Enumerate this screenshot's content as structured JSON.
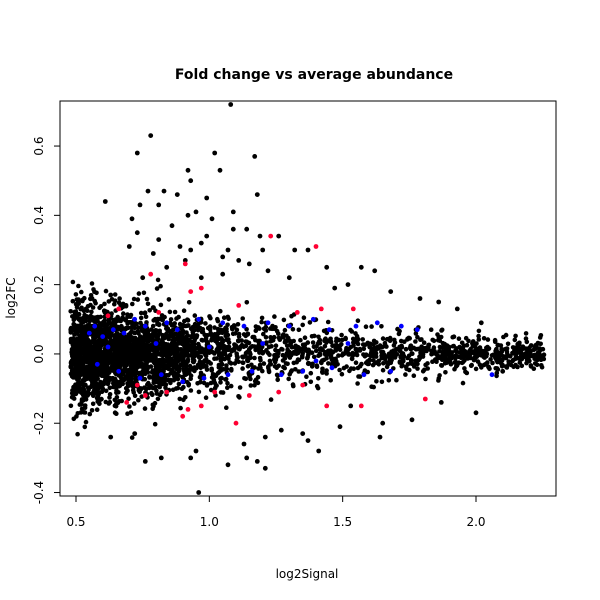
{
  "chart_data": {
    "type": "scatter",
    "title": "Fold change vs average abundance",
    "xlabel": "log2Signal",
    "ylabel": "log2FC",
    "xlim": [
      0.44,
      2.3
    ],
    "ylim": [
      -0.41,
      0.73
    ],
    "xticks": [
      0.5,
      1.0,
      1.5,
      2.0
    ],
    "xtick_labels": [
      "0.5",
      "1.0",
      "1.5",
      "2.0"
    ],
    "yticks": [
      -0.4,
      -0.2,
      0.0,
      0.2,
      0.4,
      0.6
    ],
    "ytick_labels": [
      "-0.4",
      "-0.2",
      "0.0",
      "0.2",
      "0.4",
      "0.6"
    ],
    "grid": false,
    "legend": "none",
    "colors": {
      "all": "#000000",
      "blue_highlight": "#0000ff",
      "red_highlight": "#ff0033"
    },
    "series": [
      {
        "color": "#000000",
        "points": [
          [
            1.08,
            0.72
          ],
          [
            0.78,
            0.63
          ],
          [
            0.73,
            0.58
          ],
          [
            1.02,
            0.58
          ],
          [
            1.17,
            0.57
          ],
          [
            0.92,
            0.53
          ],
          [
            1.04,
            0.53
          ],
          [
            0.93,
            0.5
          ],
          [
            0.83,
            0.47
          ],
          [
            0.77,
            0.47
          ],
          [
            1.18,
            0.46
          ],
          [
            0.99,
            0.45
          ],
          [
            0.88,
            0.46
          ],
          [
            0.61,
            0.44
          ],
          [
            0.81,
            0.43
          ],
          [
            0.95,
            0.41
          ],
          [
            1.09,
            0.41
          ],
          [
            0.71,
            0.39
          ],
          [
            1.01,
            0.39
          ],
          [
            0.86,
            0.37
          ],
          [
            1.14,
            0.36
          ],
          [
            0.73,
            0.35
          ],
          [
            1.26,
            0.34
          ],
          [
            1.19,
            0.34
          ],
          [
            0.81,
            0.33
          ],
          [
            1.32,
            0.3
          ],
          [
            0.93,
            0.3
          ],
          [
            1.37,
            0.3
          ],
          [
            0.7,
            0.31
          ],
          [
            1.05,
            0.28
          ],
          [
            0.91,
            0.27
          ],
          [
            1.15,
            0.26
          ],
          [
            1.44,
            0.25
          ],
          [
            1.57,
            0.25
          ],
          [
            0.84,
            0.25
          ],
          [
            1.05,
            0.23
          ],
          [
            1.22,
            0.24
          ],
          [
            0.97,
            0.22
          ],
          [
            1.3,
            0.22
          ],
          [
            1.62,
            0.24
          ],
          [
            0.75,
            0.22
          ],
          [
            1.47,
            0.19
          ],
          [
            1.68,
            0.18
          ],
          [
            1.52,
            0.2
          ],
          [
            1.79,
            0.16
          ],
          [
            1.86,
            0.15
          ],
          [
            0.56,
            0.16
          ],
          [
            0.63,
            0.17
          ],
          [
            1.93,
            0.13
          ],
          [
            2.02,
            0.09
          ],
          [
            1.27,
            -0.22
          ],
          [
            1.21,
            -0.24
          ],
          [
            1.35,
            -0.23
          ],
          [
            0.72,
            -0.23
          ],
          [
            0.63,
            -0.24
          ],
          [
            0.95,
            -0.28
          ],
          [
            0.93,
            -0.3
          ],
          [
            0.82,
            -0.3
          ],
          [
            0.76,
            -0.31
          ],
          [
            1.14,
            -0.3
          ],
          [
            1.18,
            -0.31
          ],
          [
            1.07,
            -0.32
          ],
          [
            1.21,
            -0.33
          ],
          [
            0.96,
            -0.4
          ],
          [
            1.37,
            -0.25
          ],
          [
            1.41,
            -0.28
          ],
          [
            1.64,
            -0.24
          ],
          [
            1.65,
            -0.2
          ],
          [
            1.76,
            -0.19
          ],
          [
            2.0,
            -0.17
          ],
          [
            1.87,
            -0.14
          ],
          [
            0.52,
            -0.1
          ],
          [
            0.58,
            -0.09
          ],
          [
            2.1,
            -0.05
          ],
          [
            2.2,
            -0.02
          ],
          [
            2.24,
            -0.01
          ],
          [
            2.15,
            0.01
          ],
          [
            1.53,
            -0.15
          ],
          [
            1.49,
            -0.21
          ],
          [
            1.13,
            -0.26
          ],
          [
            0.99,
            0.34
          ],
          [
            1.09,
            0.36
          ],
          [
            0.97,
            0.32
          ],
          [
            0.92,
            0.4
          ],
          [
            1.07,
            0.3
          ],
          [
            0.89,
            0.31
          ],
          [
            0.74,
            0.43
          ],
          [
            0.79,
            0.29
          ],
          [
            1.11,
            0.27
          ],
          [
            1.2,
            0.3
          ]
        ]
      },
      {
        "color": "#0000ff",
        "points": [
          [
            0.55,
            0.06
          ],
          [
            0.57,
            0.08
          ],
          [
            0.6,
            0.05
          ],
          [
            0.64,
            0.07
          ],
          [
            0.68,
            0.06
          ],
          [
            0.72,
            0.1
          ],
          [
            0.76,
            0.08
          ],
          [
            0.84,
            0.09
          ],
          [
            0.88,
            0.07
          ],
          [
            0.96,
            0.1
          ],
          [
            1.05,
            0.09
          ],
          [
            1.13,
            0.08
          ],
          [
            1.22,
            0.09
          ],
          [
            1.3,
            0.08
          ],
          [
            1.39,
            0.1
          ],
          [
            1.45,
            0.07
          ],
          [
            1.55,
            0.08
          ],
          [
            1.63,
            0.09
          ],
          [
            1.72,
            0.08
          ],
          [
            1.78,
            0.07
          ],
          [
            0.58,
            -0.03
          ],
          [
            0.66,
            -0.05
          ],
          [
            0.74,
            -0.07
          ],
          [
            0.82,
            -0.06
          ],
          [
            0.9,
            -0.08
          ],
          [
            0.98,
            -0.07
          ],
          [
            1.07,
            -0.06
          ],
          [
            1.16,
            -0.05
          ],
          [
            1.27,
            -0.06
          ],
          [
            1.35,
            -0.05
          ],
          [
            1.46,
            -0.04
          ],
          [
            1.58,
            -0.06
          ],
          [
            1.68,
            -0.05
          ],
          [
            2.06,
            -0.06
          ],
          [
            0.62,
            0.02
          ],
          [
            0.8,
            0.03
          ],
          [
            1.0,
            0.02
          ],
          [
            1.2,
            0.03
          ],
          [
            1.4,
            -0.02
          ],
          [
            1.52,
            0.03
          ]
        ]
      },
      {
        "color": "#ff0033",
        "points": [
          [
            1.23,
            0.34
          ],
          [
            1.4,
            0.31
          ],
          [
            0.91,
            0.26
          ],
          [
            0.78,
            0.23
          ],
          [
            0.97,
            0.19
          ],
          [
            0.93,
            0.18
          ],
          [
            0.81,
            0.12
          ],
          [
            0.62,
            0.11
          ],
          [
            0.66,
            0.13
          ],
          [
            1.33,
            0.12
          ],
          [
            1.42,
            0.13
          ],
          [
            1.54,
            0.13
          ],
          [
            1.11,
            0.14
          ],
          [
            0.84,
            -0.11
          ],
          [
            0.76,
            -0.12
          ],
          [
            0.69,
            -0.14
          ],
          [
            0.92,
            -0.16
          ],
          [
            0.97,
            -0.15
          ],
          [
            0.9,
            -0.18
          ],
          [
            1.1,
            -0.2
          ],
          [
            1.15,
            -0.12
          ],
          [
            1.44,
            -0.15
          ],
          [
            1.57,
            -0.15
          ],
          [
            1.81,
            -0.13
          ],
          [
            1.26,
            -0.11
          ],
          [
            1.02,
            -0.11
          ],
          [
            0.73,
            -0.09
          ],
          [
            1.35,
            -0.09
          ]
        ]
      }
    ]
  }
}
